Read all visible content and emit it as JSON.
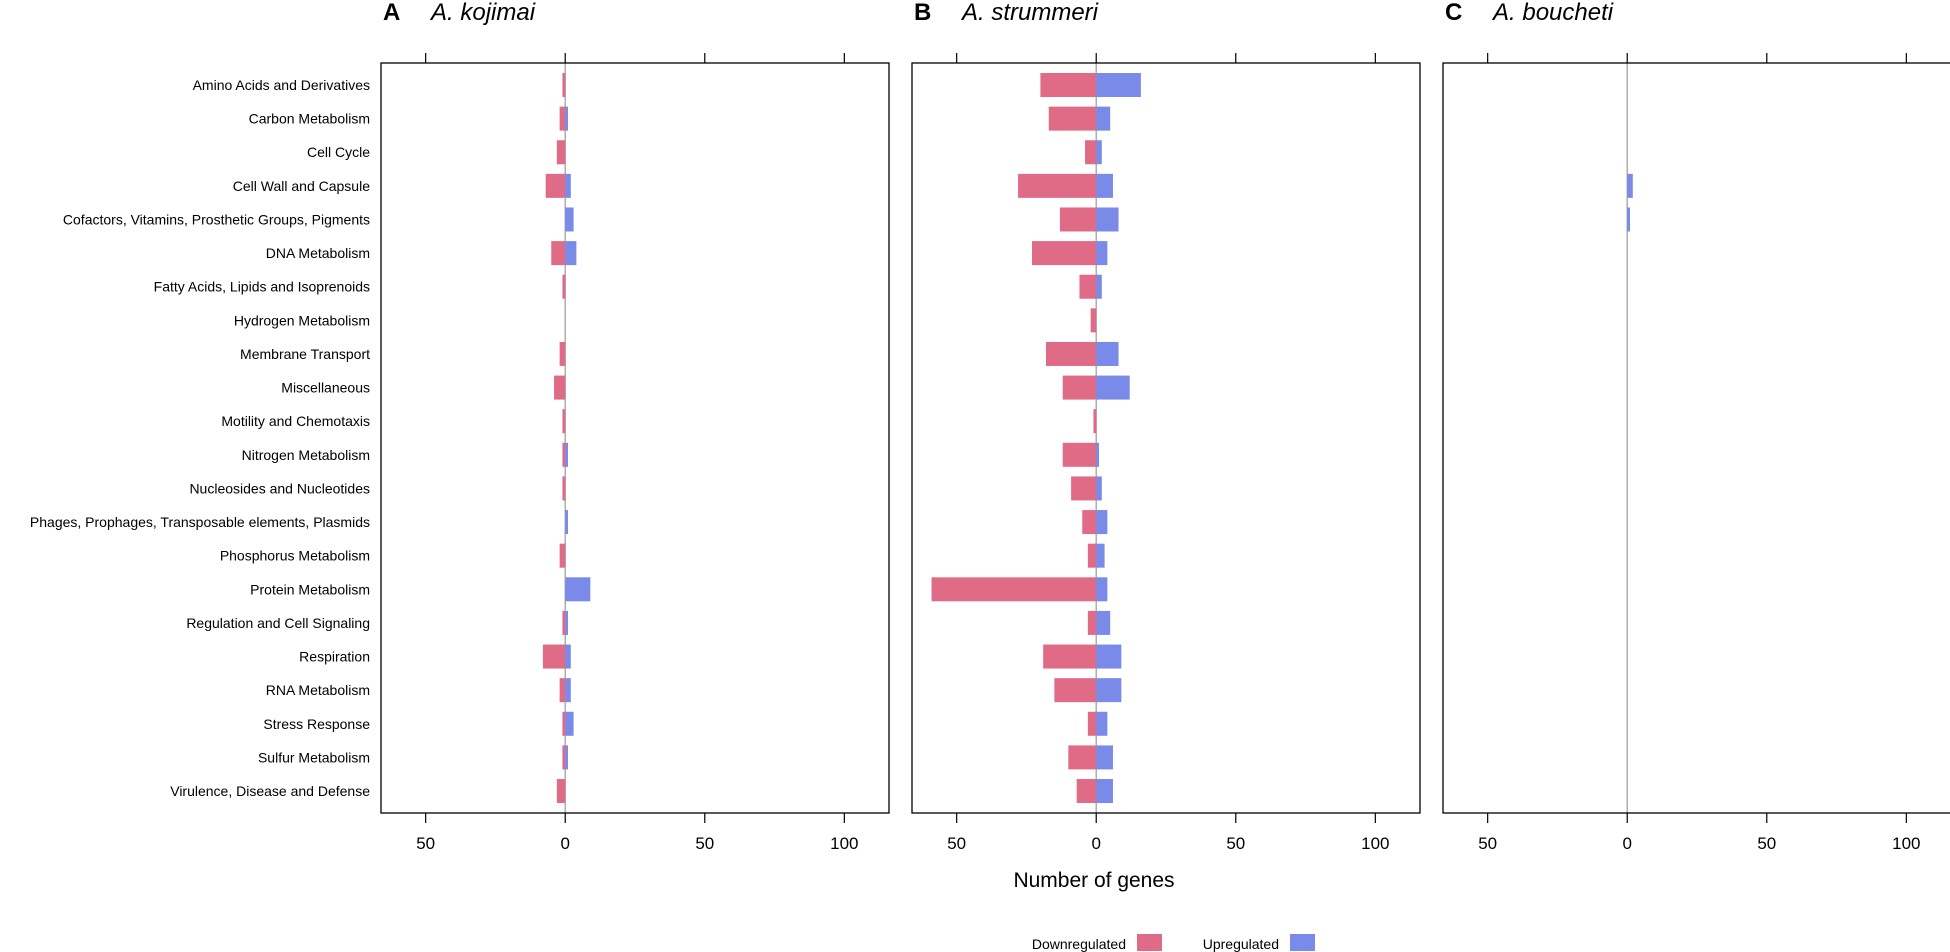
{
  "chart_data": {
    "type": "bar",
    "orientation": "horizontal-diverging",
    "xlabel": "Number of genes",
    "xlim": [
      -66,
      116
    ],
    "xticks": [
      -50,
      0,
      50,
      100
    ],
    "xtick_labels": [
      "50",
      "0",
      "50",
      "100"
    ],
    "colors": {
      "down": "#e06b86",
      "up": "#7a8ae8",
      "zero_line": "#a8a8a8",
      "frame": "#000000"
    },
    "categories": [
      "Amino Acids and Derivatives",
      "Carbon Metabolism",
      "Cell Cycle",
      "Cell Wall and Capsule",
      "Cofactors, Vitamins, Prosthetic Groups, Pigments",
      "DNA Metabolism",
      "Fatty Acids, Lipids and Isoprenoids",
      "Hydrogen Metabolism",
      "Membrane Transport",
      "Miscellaneous",
      "Motility and Chemotaxis",
      "Nitrogen Metabolism",
      "Nucleosides and Nucleotides",
      "Phages, Prophages, Transposable elements, Plasmids",
      "Phosphorus Metabolism",
      "Protein Metabolism",
      "Regulation and Cell Signaling",
      "Respiration",
      "RNA Metabolism",
      "Stress Response",
      "Sulfur Metabolism",
      "Virulence, Disease and Defense"
    ],
    "panels": [
      {
        "letter": "A",
        "species": "A. kojimai",
        "series": [
          {
            "name": "Downregulated",
            "values": [
              1,
              2,
              3,
              7,
              0,
              5,
              1,
              0,
              2,
              4,
              1,
              1,
              1,
              0,
              2,
              0,
              1,
              8,
              2,
              1,
              1,
              3
            ]
          },
          {
            "name": "Upregulated",
            "values": [
              0,
              1,
              0,
              2,
              3,
              4,
              0,
              0,
              0,
              0,
              0,
              1,
              0,
              1,
              0,
              9,
              1,
              2,
              2,
              3,
              1,
              0
            ]
          }
        ]
      },
      {
        "letter": "B",
        "species": "A. strummeri",
        "series": [
          {
            "name": "Downregulated",
            "values": [
              20,
              17,
              4,
              28,
              13,
              23,
              6,
              2,
              18,
              12,
              1,
              12,
              9,
              5,
              3,
              59,
              3,
              19,
              15,
              3,
              10,
              7
            ]
          },
          {
            "name": "Upregulated",
            "values": [
              16,
              5,
              2,
              6,
              8,
              4,
              2,
              0,
              8,
              12,
              0,
              1,
              2,
              4,
              3,
              4,
              5,
              9,
              9,
              4,
              6,
              6
            ]
          }
        ]
      },
      {
        "letter": "C",
        "species": "A. boucheti",
        "series": [
          {
            "name": "Downregulated",
            "values": [
              0,
              0,
              0,
              0,
              0,
              0,
              0,
              0,
              0,
              0,
              0,
              0,
              0,
              0,
              0,
              0,
              0,
              0,
              0,
              0,
              0,
              0
            ]
          },
          {
            "name": "Upregulated",
            "values": [
              0,
              0,
              0,
              2,
              1,
              0,
              0,
              0,
              0,
              0,
              0,
              0,
              0,
              0,
              0,
              0,
              0,
              0,
              0,
              0,
              0,
              0
            ]
          }
        ]
      }
    ],
    "legend": {
      "position": "bottom-center",
      "entries": [
        {
          "label": "Downregulated",
          "color_key": "down"
        },
        {
          "label": "Upregulated",
          "color_key": "up"
        }
      ]
    }
  }
}
